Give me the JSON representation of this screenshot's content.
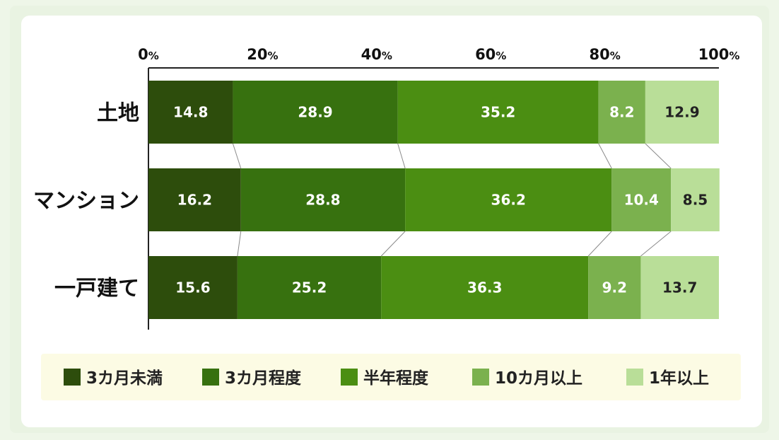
{
  "chart_data": {
    "type": "bar",
    "orientation": "horizontal",
    "stacked": true,
    "xlim": [
      0,
      100
    ],
    "x_ticks": [
      {
        "num": "0",
        "unit": "%"
      },
      {
        "num": "20",
        "unit": "%"
      },
      {
        "num": "40",
        "unit": "%"
      },
      {
        "num": "60",
        "unit": "%"
      },
      {
        "num": "80",
        "unit": "%"
      },
      {
        "num": "100",
        "unit": "%"
      }
    ],
    "categories": [
      "土地",
      "マンション",
      "一戸建て"
    ],
    "series": [
      {
        "name": "3カ月未満",
        "color": "#2d4d0c",
        "label_color": "#ffffff",
        "values": [
          14.8,
          16.2,
          15.6
        ]
      },
      {
        "name": "3カ月程度",
        "color": "#37710f",
        "label_color": "#ffffff",
        "values": [
          28.9,
          28.8,
          25.2
        ]
      },
      {
        "name": "半年程度",
        "color": "#4b8e12",
        "label_color": "#ffffff",
        "values": [
          35.2,
          36.2,
          36.3
        ]
      },
      {
        "name": "10カ月以上",
        "color": "#7bb14e",
        "label_color": "#ffffff",
        "values": [
          8.2,
          10.4,
          9.2
        ]
      },
      {
        "name": "1年以上",
        "color": "#b9de98",
        "label_color": "#222222",
        "values": [
          12.9,
          8.5,
          13.7
        ]
      }
    ],
    "connector_lines": true,
    "legend_position": "bottom",
    "grid": false
  }
}
